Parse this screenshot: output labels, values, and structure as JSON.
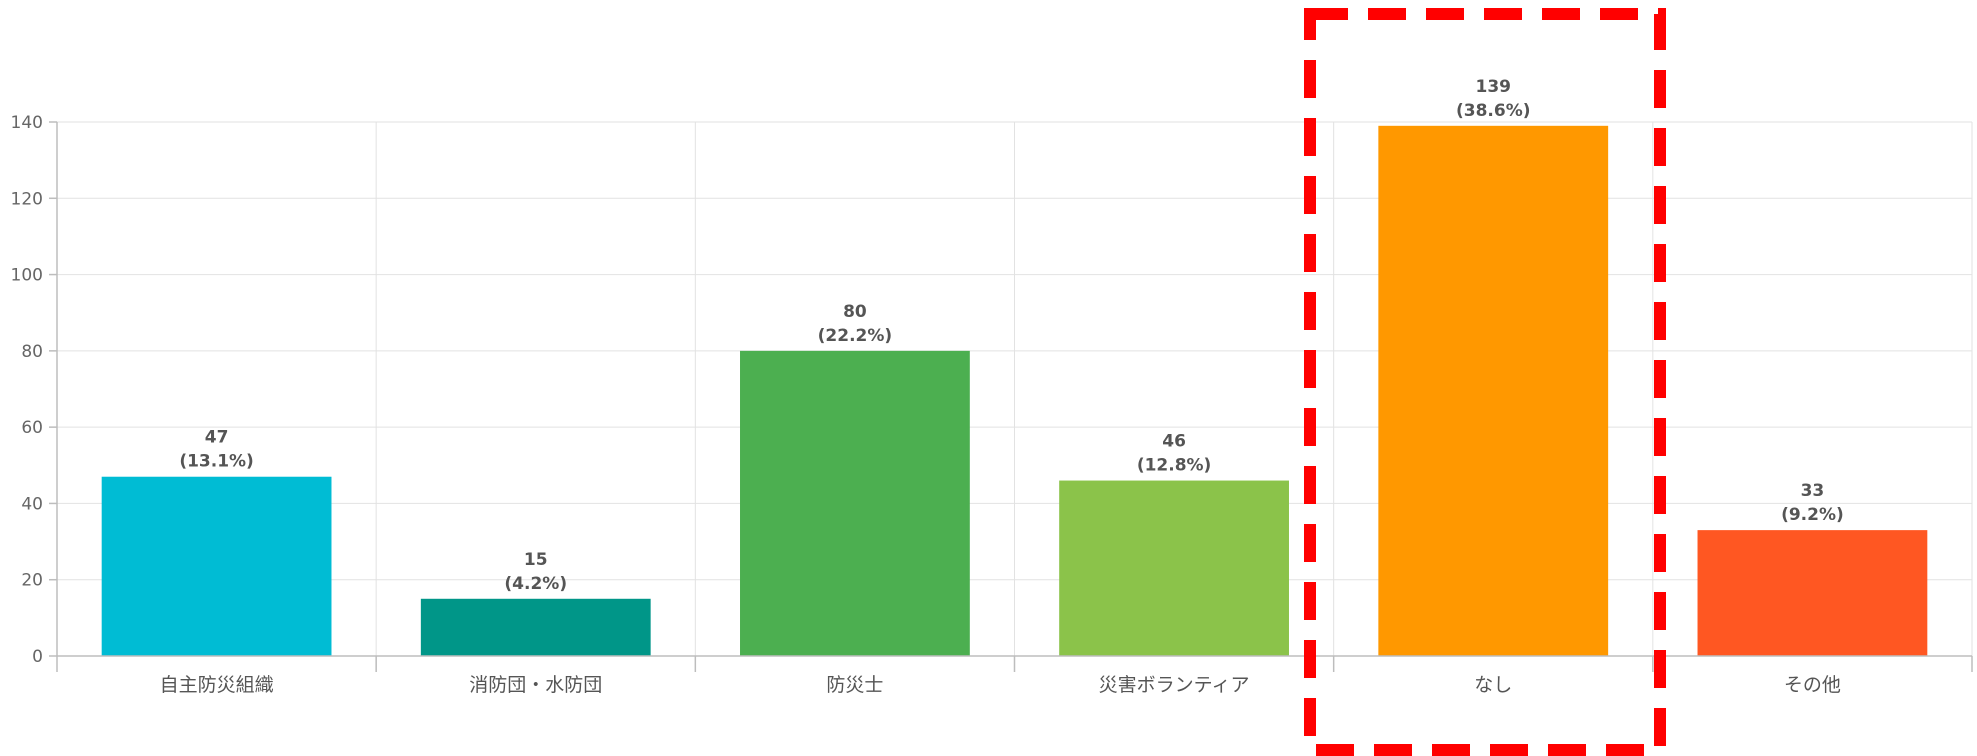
{
  "chart_data": {
    "type": "bar",
    "categories": [
      "自主防災組織",
      "消防団・水防団",
      "防災士",
      "災害ボランティア",
      "なし",
      "その他"
    ],
    "values": [
      47,
      15,
      80,
      46,
      139,
      33
    ],
    "value_labels": [
      "(13.1%)",
      "(4.2%)",
      "(22.2%)",
      "(12.8%)",
      "(38.6%)",
      "(9.2%)"
    ],
    "colors": [
      "#00bcd4",
      "#009688",
      "#4caf50",
      "#8bc34a",
      "#ff9800",
      "#ff5722"
    ],
    "y_ticks": [
      0,
      20,
      40,
      60,
      80,
      100,
      120,
      140
    ],
    "ylim": [
      0,
      140
    ],
    "grid": true,
    "highlight": {
      "category": "なし",
      "style": "red dashed box",
      "color": "#ff0000"
    }
  }
}
